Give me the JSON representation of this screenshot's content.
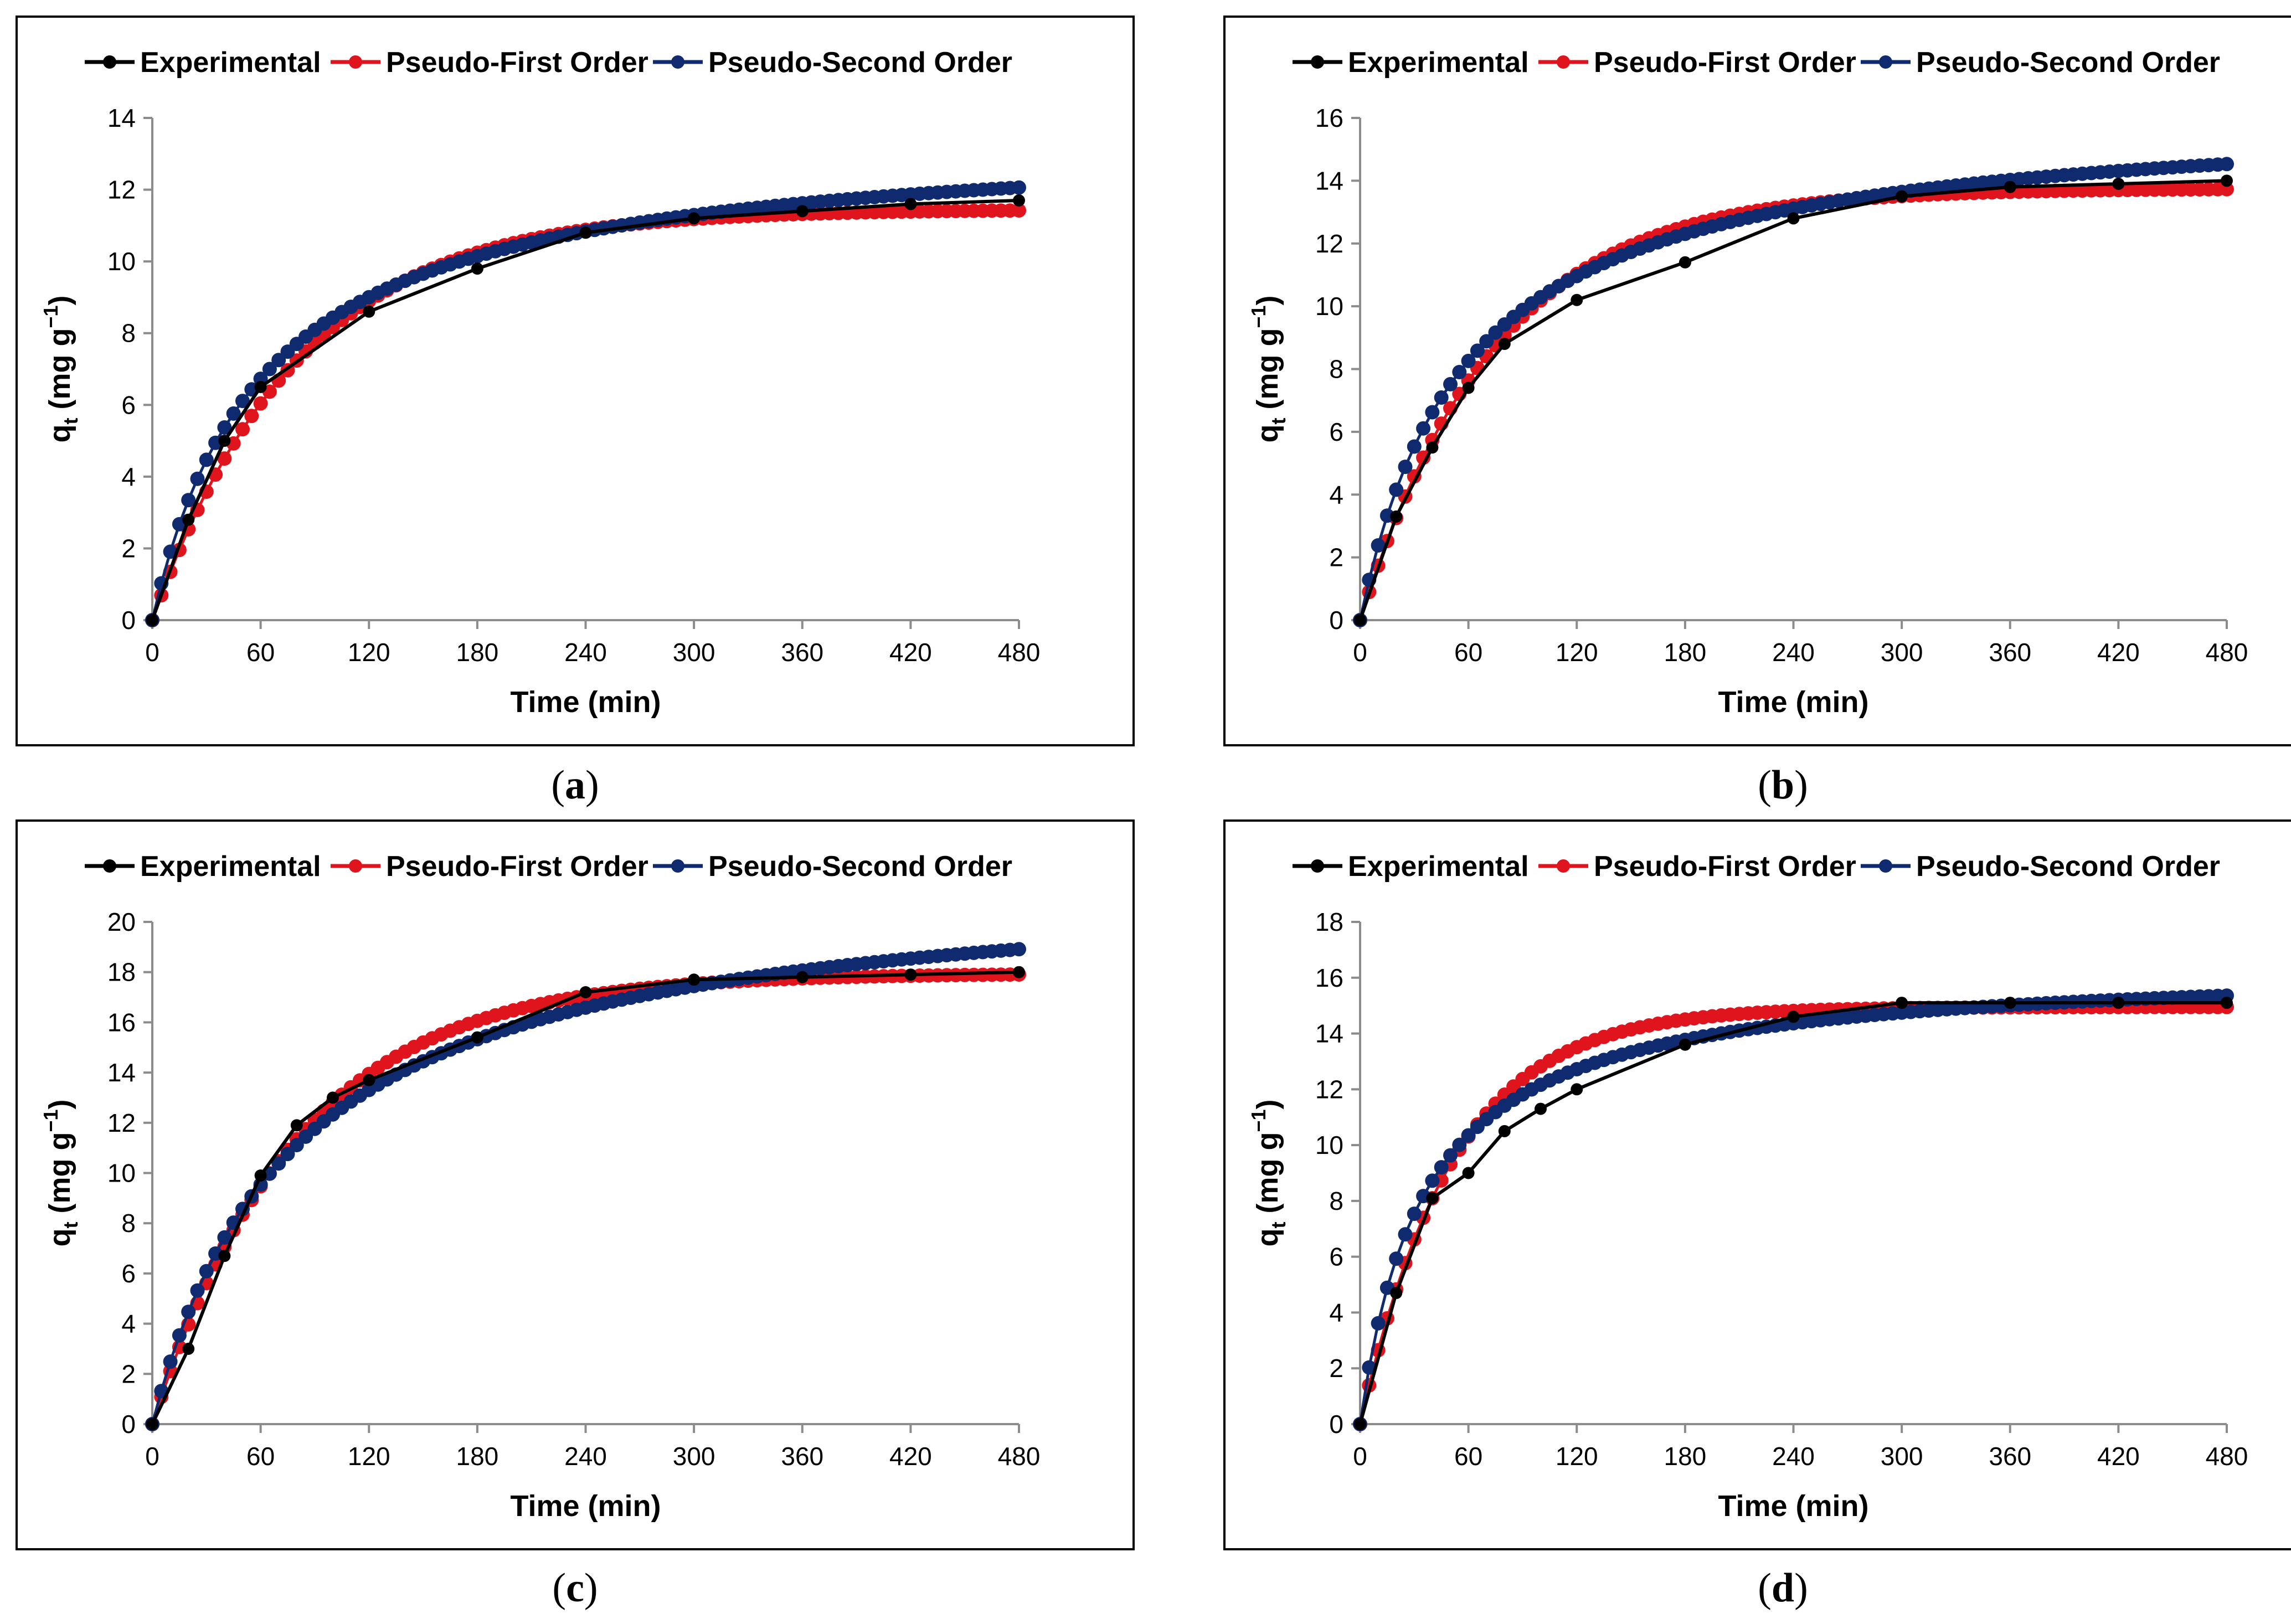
{
  "colors": {
    "experimental": "#000000",
    "pfo": "#e0141c",
    "pso": "#0f2a6e",
    "frame": "#000000",
    "axis": "#8c8c8c"
  },
  "legend": {
    "experimental": "Experimental",
    "pfo": "Pseudo-First Order",
    "pso": "Pseudo-Second Order"
  },
  "panels": [
    {
      "id": "a",
      "caption_open": "(",
      "caption_letter": "a",
      "caption_close": ")"
    },
    {
      "id": "b",
      "caption_open": "(",
      "caption_letter": "b",
      "caption_close": ")"
    },
    {
      "id": "c",
      "caption_open": "(",
      "caption_letter": "c",
      "caption_close": ")"
    },
    {
      "id": "d",
      "caption_open": "(",
      "caption_letter": "d",
      "caption_close": ")"
    }
  ],
  "chart_data": [
    {
      "type": "line",
      "xlabel": "Time (min)",
      "ylabel": "q",
      "ylabel_sub": "t",
      "ylabel_unit": " (mg g",
      "ylabel_sup": "−1",
      "ylabel_end": ")",
      "xlim": [
        0,
        480
      ],
      "ylim": [
        0,
        14
      ],
      "xticks": [
        0,
        60,
        120,
        180,
        240,
        300,
        360,
        420,
        480
      ],
      "yticks": [
        0,
        2,
        4,
        6,
        8,
        10,
        12,
        14
      ],
      "legend_position": "top",
      "grid": false,
      "series": [
        {
          "name": "Experimental",
          "kind": "experimental",
          "x": [
            0,
            20,
            40,
            60,
            120,
            180,
            240,
            300,
            360,
            420,
            480
          ],
          "y": [
            0,
            2.8,
            5.0,
            6.5,
            8.6,
            9.8,
            10.8,
            11.2,
            11.4,
            11.6,
            11.7
          ]
        },
        {
          "name": "Pseudo-First Order",
          "kind": "pfo",
          "model": "pfo",
          "qe": 11.45,
          "k": 0.0125
        },
        {
          "name": "Pseudo-Second Order",
          "kind": "pso",
          "model": "pso",
          "qe": 13.6,
          "k": 0.0012
        }
      ]
    },
    {
      "type": "line",
      "xlabel": "Time (min)",
      "ylabel": "q",
      "ylabel_sub": "t",
      "ylabel_unit": " (mg g",
      "ylabel_sup": "−1",
      "ylabel_end": ")",
      "xlim": [
        0,
        480
      ],
      "ylim": [
        0,
        16
      ],
      "xticks": [
        0,
        60,
        120,
        180,
        240,
        300,
        360,
        420,
        480
      ],
      "yticks": [
        0,
        2,
        4,
        6,
        8,
        10,
        12,
        14,
        16
      ],
      "legend_position": "top",
      "grid": false,
      "series": [
        {
          "name": "Experimental",
          "kind": "experimental",
          "x": [
            0,
            20,
            40,
            60,
            80,
            120,
            180,
            240,
            300,
            360,
            420,
            480
          ],
          "y": [
            0,
            3.3,
            5.5,
            7.4,
            8.8,
            10.2,
            11.4,
            12.8,
            13.5,
            13.8,
            13.9,
            14.0
          ]
        },
        {
          "name": "Pseudo-First Order",
          "kind": "pfo",
          "model": "pfo",
          "qe": 13.75,
          "k": 0.0135
        },
        {
          "name": "Pseudo-Second Order",
          "kind": "pso",
          "model": "pso",
          "qe": 16.3,
          "k": 0.00105
        }
      ]
    },
    {
      "type": "line",
      "xlabel": "Time (min)",
      "ylabel": "q",
      "ylabel_sub": "t",
      "ylabel_unit": " (mg g",
      "ylabel_sup": "−1",
      "ylabel_end": ")",
      "xlim": [
        0,
        480
      ],
      "ylim": [
        0,
        20
      ],
      "xticks": [
        0,
        60,
        120,
        180,
        240,
        300,
        360,
        420,
        480
      ],
      "yticks": [
        0,
        2,
        4,
        6,
        8,
        10,
        12,
        14,
        16,
        18,
        20
      ],
      "legend_position": "top",
      "grid": false,
      "series": [
        {
          "name": "Experimental",
          "kind": "experimental",
          "x": [
            0,
            20,
            40,
            60,
            80,
            100,
            120,
            180,
            240,
            300,
            360,
            420,
            480
          ],
          "y": [
            0,
            3.0,
            6.7,
            9.9,
            11.9,
            13.0,
            13.7,
            15.4,
            17.2,
            17.7,
            17.8,
            17.9,
            18.0
          ]
        },
        {
          "name": "Pseudo-First Order",
          "kind": "pfo",
          "model": "pfo",
          "qe": 17.95,
          "k": 0.0125
        },
        {
          "name": "Pseudo-Second Order",
          "kind": "pso",
          "model": "pso",
          "qe": 22.0,
          "k": 0.00058
        }
      ]
    },
    {
      "type": "line",
      "xlabel": "Time (min)",
      "ylabel": "q",
      "ylabel_sub": "t",
      "ylabel_unit": " (mg g",
      "ylabel_sup": "−1",
      "ylabel_end": ")",
      "xlim": [
        0,
        480
      ],
      "ylim": [
        0,
        18
      ],
      "xticks": [
        0,
        60,
        120,
        180,
        240,
        300,
        360,
        420,
        480
      ],
      "yticks": [
        0,
        2,
        4,
        6,
        8,
        10,
        12,
        14,
        16,
        18
      ],
      "legend_position": "top",
      "grid": false,
      "series": [
        {
          "name": "Experimental",
          "kind": "experimental",
          "x": [
            0,
            20,
            40,
            60,
            80,
            100,
            120,
            180,
            240,
            300,
            360,
            420,
            480
          ],
          "y": [
            0,
            4.7,
            8.1,
            9.0,
            10.5,
            11.3,
            12.0,
            13.6,
            14.6,
            15.1,
            15.1,
            15.1,
            15.1
          ]
        },
        {
          "name": "Pseudo-First Order",
          "kind": "pfo",
          "model": "pfo",
          "qe": 14.95,
          "k": 0.0195
        },
        {
          "name": "Pseudo-Second Order",
          "kind": "pso",
          "model": "pso",
          "qe": 16.5,
          "k": 0.0017
        }
      ]
    }
  ]
}
